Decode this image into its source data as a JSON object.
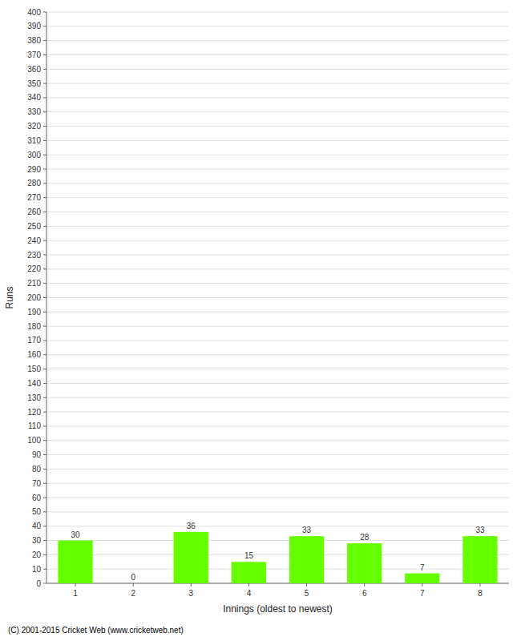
{
  "chart_data": {
    "type": "bar",
    "categories": [
      1,
      2,
      3,
      4,
      5,
      6,
      7,
      8
    ],
    "values": [
      30,
      0,
      36,
      15,
      33,
      28,
      7,
      33
    ],
    "color": "#66ff00",
    "x_label": "Innings (oldest to newest)",
    "y_label": "Runs",
    "ylim": [
      0,
      400
    ],
    "yticks": [
      0,
      10,
      20,
      30,
      40,
      50,
      60,
      70,
      80,
      90,
      100,
      110,
      120,
      130,
      140,
      150,
      160,
      170,
      180,
      190,
      200,
      210,
      220,
      230,
      240,
      250,
      260,
      270,
      280,
      290,
      300,
      310,
      320,
      330,
      340,
      350,
      360,
      370,
      380,
      390,
      400
    ],
    "grid": true,
    "data_labels": true,
    "annotations": [
      "(C) 2001-2015 Cricket Web (www.cricketweb.net)"
    ]
  }
}
